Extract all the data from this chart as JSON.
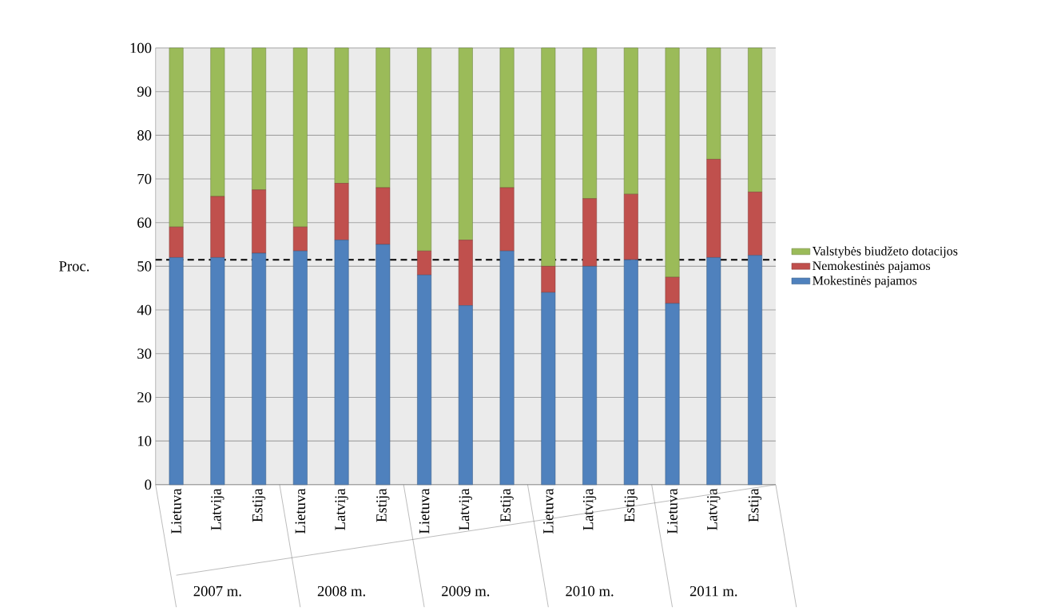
{
  "chart_data": {
    "type": "bar",
    "stacked": true,
    "ylabel": "Proc.",
    "categories": [
      "Lietuva",
      "Latvija",
      "Estija",
      "Lietuva",
      "Latvija",
      "Estija",
      "Lietuva",
      "Latvija",
      "Estija",
      "Lietuva",
      "Latvija",
      "Estija",
      "Lietuva",
      "Latvija",
      "Estija"
    ],
    "annotations": [
      "2007 m.",
      "2008 m.",
      "2009 m.",
      "2010 m.",
      "2011 m."
    ],
    "series": [
      {
        "name": "Mokestinės pajamos",
        "color": "#4f81bd",
        "values": [
          52,
          52,
          53,
          53.5,
          56,
          55,
          48,
          41,
          53.5,
          44,
          50,
          51.5,
          41.5,
          52,
          52.5
        ]
      },
      {
        "name": "Nemokestinės pajamos",
        "color": "#c0504d",
        "values": [
          7,
          14,
          14.5,
          5.5,
          13,
          13,
          5.5,
          15,
          14.5,
          6,
          15.5,
          15,
          6,
          22.5,
          14.5
        ]
      },
      {
        "name": "Valstybės biudžeto dotacijos",
        "color": "#9bbb59",
        "values": [
          41,
          34,
          32.5,
          41,
          31,
          32,
          46.5,
          44,
          32,
          50,
          34.5,
          33.5,
          52.5,
          25.5,
          33
        ]
      }
    ],
    "ylim": [
      0,
      100
    ],
    "yticks": [
      0,
      10,
      20,
      30,
      40,
      50,
      60,
      70,
      80,
      90,
      100
    ],
    "ref_lines": [
      {
        "axis": "y",
        "value": 51.5,
        "color": "#000000",
        "line_style": "dashed"
      }
    ],
    "grid": "y",
    "legend": "right"
  }
}
